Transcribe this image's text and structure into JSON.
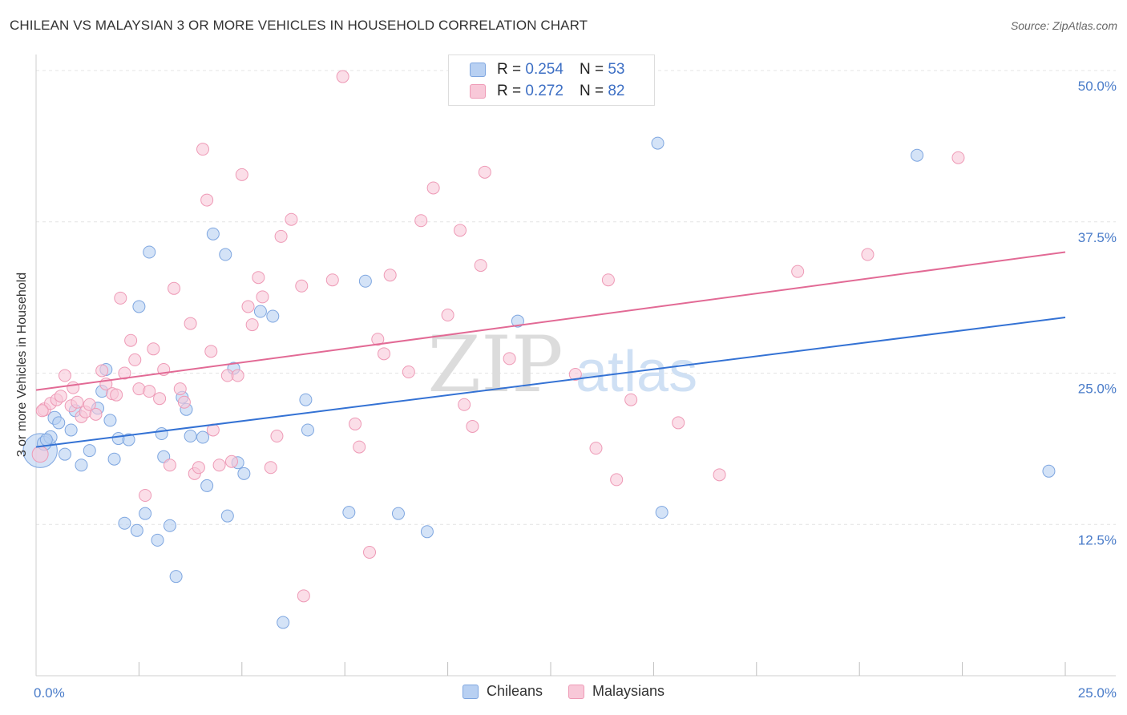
{
  "title": "CHILEAN VS MALAYSIAN 3 OR MORE VEHICLES IN HOUSEHOLD CORRELATION CHART",
  "source": "Source: ZipAtlas.com",
  "watermark": {
    "zip": "ZIP",
    "atlas": "atlas"
  },
  "legend": {
    "rows": [
      {
        "r_label": "R =",
        "r_value": "0.254",
        "n_label": "N =",
        "n_value": "53"
      },
      {
        "r_label": "R =",
        "r_value": "0.272",
        "n_label": "N =",
        "n_value": "82"
      }
    ],
    "bottom": [
      "Chileans",
      "Malaysians"
    ]
  },
  "colors": {
    "chileans_fill": "#b8d0f2",
    "chileans_stroke": "#7ea6e0",
    "chileans_line": "#3472d4",
    "malaysians_fill": "#f8c8d8",
    "malaysians_stroke": "#ee9ab6",
    "malaysians_line": "#e26a95",
    "tick_label": "#4a7cc9"
  },
  "chart_data": {
    "type": "scatter",
    "title": "CHILEAN VS MALAYSIAN 3 OR MORE VEHICLES IN HOUSEHOLD CORRELATION CHART",
    "xlabel": "",
    "ylabel": "3 or more Vehicles in Household",
    "xlim": [
      0,
      25
    ],
    "ylim": [
      0,
      50
    ],
    "x_tick_labels": [
      "0.0%",
      "25.0%"
    ],
    "y_tick_values": [
      12.5,
      25.0,
      37.5,
      50.0
    ],
    "y_tick_labels": [
      "12.5%",
      "25.0%",
      "37.5%",
      "50.0%"
    ],
    "grid": true,
    "series": [
      {
        "name": "Chileans",
        "r": 0.254,
        "n": 53,
        "trend": {
          "x": [
            0,
            25
          ],
          "y": [
            18.9,
            29.6
          ]
        },
        "points": [
          [
            0.1,
            18.6,
            34
          ],
          [
            0.2,
            19.2,
            14
          ],
          [
            0.35,
            19.7,
            13
          ],
          [
            0.45,
            21.3,
            13
          ],
          [
            0.55,
            20.9,
            12
          ],
          [
            0.7,
            18.3,
            12
          ],
          [
            0.85,
            20.3,
            12
          ],
          [
            0.95,
            21.9,
            12
          ],
          [
            1.1,
            17.4,
            12
          ],
          [
            1.3,
            18.6,
            12
          ],
          [
            1.5,
            22.1,
            12
          ],
          [
            1.6,
            23.5,
            12
          ],
          [
            1.7,
            25.3,
            12
          ],
          [
            1.8,
            21.1,
            12
          ],
          [
            1.9,
            17.9,
            12
          ],
          [
            2.0,
            19.6,
            12
          ],
          [
            2.15,
            12.6,
            12
          ],
          [
            2.25,
            19.5,
            12
          ],
          [
            2.45,
            12.0,
            12
          ],
          [
            2.5,
            30.5,
            12
          ],
          [
            2.65,
            13.4,
            12
          ],
          [
            2.75,
            35.0,
            12
          ],
          [
            2.95,
            11.2,
            12
          ],
          [
            3.05,
            20.0,
            12
          ],
          [
            3.1,
            18.1,
            12
          ],
          [
            3.25,
            12.4,
            12
          ],
          [
            3.4,
            8.2,
            12
          ],
          [
            3.55,
            23.0,
            12
          ],
          [
            3.65,
            22.0,
            12
          ],
          [
            3.75,
            19.8,
            12
          ],
          [
            4.05,
            19.7,
            12
          ],
          [
            4.15,
            15.7,
            12
          ],
          [
            4.3,
            36.5,
            12
          ],
          [
            4.6,
            34.8,
            12
          ],
          [
            4.65,
            13.2,
            12
          ],
          [
            4.8,
            25.4,
            12
          ],
          [
            4.9,
            17.6,
            12
          ],
          [
            5.05,
            16.7,
            12
          ],
          [
            5.45,
            30.1,
            12
          ],
          [
            5.75,
            29.7,
            12
          ],
          [
            6.0,
            4.4,
            12
          ],
          [
            6.55,
            22.8,
            12
          ],
          [
            6.6,
            20.3,
            12
          ],
          [
            7.6,
            13.5,
            12
          ],
          [
            8.0,
            32.6,
            12
          ],
          [
            8.8,
            13.4,
            12
          ],
          [
            9.5,
            11.9,
            12
          ],
          [
            11.7,
            29.3,
            12
          ],
          [
            15.1,
            44.0,
            12
          ],
          [
            15.2,
            13.5,
            12
          ],
          [
            21.4,
            43.0,
            12
          ],
          [
            24.6,
            16.9,
            12
          ],
          [
            0.25,
            19.5,
            12
          ]
        ]
      },
      {
        "name": "Malaysians",
        "r": 0.272,
        "n": 82,
        "trend": {
          "x": [
            0,
            25
          ],
          "y": [
            23.6,
            35.0
          ]
        },
        "points": [
          [
            0.1,
            18.3,
            16
          ],
          [
            0.2,
            22.0,
            13
          ],
          [
            0.35,
            22.5,
            12
          ],
          [
            0.5,
            22.8,
            12
          ],
          [
            0.6,
            23.1,
            12
          ],
          [
            0.7,
            24.8,
            12
          ],
          [
            0.85,
            22.3,
            12
          ],
          [
            0.9,
            23.8,
            12
          ],
          [
            1.0,
            22.6,
            12
          ],
          [
            1.1,
            21.4,
            12
          ],
          [
            1.2,
            21.8,
            12
          ],
          [
            1.3,
            22.4,
            12
          ],
          [
            1.45,
            21.6,
            12
          ],
          [
            1.6,
            25.2,
            12
          ],
          [
            1.7,
            24.1,
            12
          ],
          [
            1.85,
            23.3,
            12
          ],
          [
            1.95,
            23.2,
            12
          ],
          [
            2.05,
            31.2,
            12
          ],
          [
            2.15,
            25.0,
            12
          ],
          [
            2.3,
            27.7,
            12
          ],
          [
            2.4,
            26.1,
            12
          ],
          [
            2.5,
            23.7,
            12
          ],
          [
            2.65,
            14.9,
            12
          ],
          [
            2.75,
            23.5,
            12
          ],
          [
            2.85,
            27.0,
            12
          ],
          [
            3.0,
            22.9,
            12
          ],
          [
            3.1,
            25.3,
            12
          ],
          [
            3.25,
            17.4,
            12
          ],
          [
            3.35,
            32.0,
            12
          ],
          [
            3.5,
            23.7,
            12
          ],
          [
            3.6,
            22.6,
            12
          ],
          [
            3.75,
            29.1,
            12
          ],
          [
            3.85,
            16.7,
            12
          ],
          [
            3.95,
            17.2,
            12
          ],
          [
            4.05,
            43.5,
            12
          ],
          [
            4.15,
            39.3,
            12
          ],
          [
            4.25,
            26.8,
            12
          ],
          [
            4.3,
            20.3,
            12
          ],
          [
            4.45,
            17.4,
            12
          ],
          [
            4.65,
            24.8,
            12
          ],
          [
            4.75,
            17.7,
            12
          ],
          [
            4.9,
            24.8,
            12
          ],
          [
            5.0,
            41.4,
            12
          ],
          [
            5.15,
            30.5,
            12
          ],
          [
            5.25,
            29.0,
            12
          ],
          [
            5.4,
            32.9,
            12
          ],
          [
            5.5,
            31.3,
            12
          ],
          [
            5.7,
            17.2,
            12
          ],
          [
            5.85,
            19.8,
            12
          ],
          [
            5.95,
            36.3,
            12
          ],
          [
            6.2,
            37.7,
            12
          ],
          [
            6.45,
            32.2,
            12
          ],
          [
            6.5,
            6.6,
            12
          ],
          [
            7.2,
            32.7,
            12
          ],
          [
            7.45,
            49.5,
            12
          ],
          [
            7.75,
            20.8,
            12
          ],
          [
            7.85,
            18.9,
            12
          ],
          [
            8.1,
            10.2,
            12
          ],
          [
            8.3,
            27.8,
            12
          ],
          [
            8.45,
            26.6,
            12
          ],
          [
            8.6,
            33.1,
            12
          ],
          [
            9.05,
            25.1,
            12
          ],
          [
            9.35,
            37.6,
            12
          ],
          [
            9.65,
            40.3,
            12
          ],
          [
            10.0,
            29.8,
            12
          ],
          [
            10.3,
            36.8,
            12
          ],
          [
            10.4,
            22.4,
            12
          ],
          [
            10.6,
            20.6,
            12
          ],
          [
            10.8,
            33.9,
            12
          ],
          [
            10.9,
            41.6,
            12
          ],
          [
            11.5,
            26.2,
            12
          ],
          [
            13.1,
            24.9,
            12
          ],
          [
            13.6,
            18.8,
            12
          ],
          [
            13.9,
            32.7,
            12
          ],
          [
            14.1,
            16.2,
            12
          ],
          [
            14.45,
            22.8,
            12
          ],
          [
            15.6,
            20.9,
            12
          ],
          [
            16.6,
            16.6,
            12
          ],
          [
            18.5,
            33.4,
            12
          ],
          [
            20.2,
            34.8,
            12
          ],
          [
            22.4,
            42.8,
            12
          ],
          [
            0.15,
            21.9,
            12
          ]
        ]
      }
    ]
  }
}
